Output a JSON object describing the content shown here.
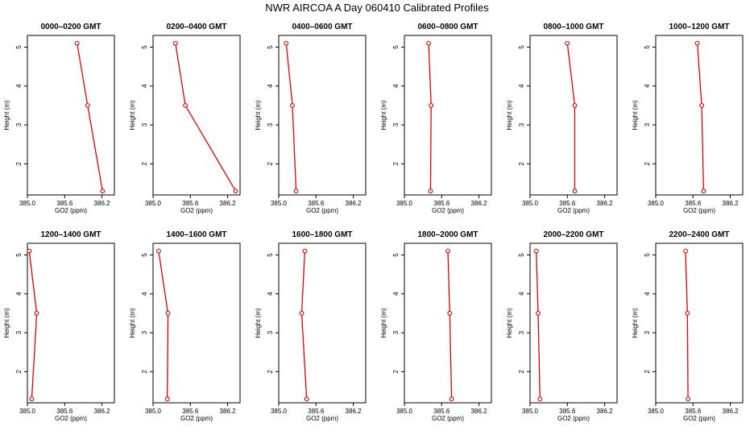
{
  "title": "NWR AIRCOA A  Day 060410  Calibrated Profiles",
  "colors": {
    "line": "#e00000",
    "marker": "#e00000",
    "frame": "#000000"
  },
  "chart_data": {
    "type": "line",
    "xlabel": "GO2 (ppm)",
    "ylabel": "Height (m)",
    "xlim": [
      385.0,
      386.4
    ],
    "ylim": [
      1.2,
      5.3
    ],
    "xticks": [
      385.0,
      385.6,
      386.2
    ],
    "xticklabels": [
      "385.0",
      "385.6",
      "386.2"
    ],
    "yticks": [
      2,
      3,
      4,
      5
    ],
    "yticklabels": [
      "2",
      "3",
      "4",
      "5"
    ],
    "heights": [
      5.1,
      3.5,
      1.3
    ],
    "panels": [
      {
        "title": "0000–0200 GMT",
        "x": [
          385.8,
          385.97,
          386.21
        ]
      },
      {
        "title": "0200–0400 GMT",
        "x": [
          385.36,
          385.52,
          386.33
        ]
      },
      {
        "title": "0400–0600 GMT",
        "x": [
          385.12,
          385.22,
          385.28
        ]
      },
      {
        "title": "0600–0800 GMT",
        "x": [
          385.39,
          385.43,
          385.42
        ]
      },
      {
        "title": "0800–1000 GMT",
        "x": [
          385.6,
          385.72,
          385.72
        ]
      },
      {
        "title": "1000–1200 GMT",
        "x": [
          385.67,
          385.74,
          385.77
        ]
      },
      {
        "title": "1200–1400 GMT",
        "x": [
          385.03,
          385.15,
          385.07
        ]
      },
      {
        "title": "1400–1600 GMT",
        "x": [
          385.09,
          385.24,
          385.23
        ]
      },
      {
        "title": "1600–1800 GMT",
        "x": [
          385.42,
          385.37,
          385.45
        ]
      },
      {
        "title": "1800–2000 GMT",
        "x": [
          385.7,
          385.73,
          385.76
        ]
      },
      {
        "title": "2000–2200 GMT",
        "x": [
          385.1,
          385.13,
          385.16
        ]
      },
      {
        "title": "2200–2400 GMT",
        "x": [
          385.48,
          385.51,
          385.52
        ]
      }
    ]
  }
}
